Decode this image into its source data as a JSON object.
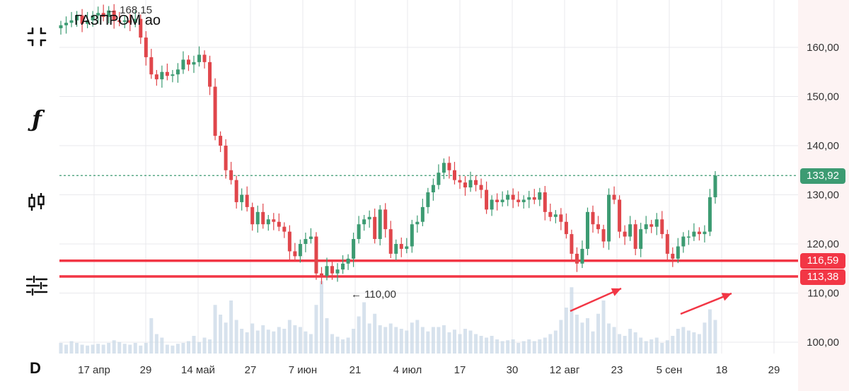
{
  "symbol": "ГАЗПРОМ ао",
  "period": "D",
  "toolbar": [
    {
      "name": "fullscreen-icon"
    },
    {
      "name": "indicators-icon"
    },
    {
      "name": "candles-icon"
    },
    {
      "name": "settings-sliders-icon"
    }
  ],
  "colors": {
    "up": "#3c9b72",
    "down": "#e0464b",
    "volume": "#c9d8e7",
    "grid": "#e9e9ec",
    "level": "#f23645",
    "last_price": "#3c9b72"
  },
  "chart_data": {
    "type": "candlestick",
    "y_ticks": [
      "160,00",
      "150,00",
      "140,00",
      "130,00",
      "120,00",
      "110,00",
      "100,00"
    ],
    "x_ticks": [
      "17 апр",
      "29",
      "14 май",
      "27",
      "7 июн",
      "21",
      "4 июл",
      "17",
      "30",
      "12 авг",
      "23",
      "5 сен",
      "18",
      "29"
    ],
    "ylim": [
      98,
      168
    ],
    "last_price": "133,92",
    "levels": [
      "116,59",
      "113,38"
    ],
    "high_annotation": "← 168,15",
    "low_annotation": "← 110,00",
    "closes": [
      164.5,
      165.0,
      165.5,
      166.5,
      164.8,
      165.5,
      166.5,
      167.0,
      166.2,
      167.5,
      165.5,
      165.2,
      165.5,
      165.0,
      165.8,
      162.0,
      158.0,
      154.5,
      153.5,
      155.0,
      154.2,
      154.5,
      155.5,
      157.5,
      156.5,
      157.0,
      158.5,
      157.0,
      152.0,
      142.0,
      140.0,
      135.0,
      133.0,
      128.5,
      130.0,
      127.5,
      124.0,
      126.5,
      124.0,
      125.0,
      124.5,
      123.5,
      122.5,
      118.5,
      117.5,
      120.0,
      121.0,
      121.5,
      114.0,
      113.5,
      115.5,
      114.0,
      114.8,
      116.0,
      117.0,
      121.0,
      124.0,
      125.0,
      125.5,
      121.0,
      127.0,
      123.0,
      118.0,
      120.0,
      119.0,
      119.5,
      124.0,
      124.5,
      127.5,
      130.5,
      132.0,
      134.5,
      136.5,
      135.0,
      133.0,
      132.5,
      131.5,
      133.0,
      132.0,
      131.0,
      127.0,
      129.0,
      128.5,
      129.0,
      130.0,
      129.0,
      128.5,
      129.0,
      129.5,
      129.0,
      130.5,
      126.5,
      125.5,
      126.0,
      124.5,
      122.0,
      118.0,
      116.0,
      119.0,
      126.5,
      124.0,
      123.0,
      120.5,
      130.0,
      129.0,
      122.5,
      121.5,
      124.0,
      119.0,
      123.0,
      124.0,
      123.5,
      125.0,
      122.0,
      118.0,
      117.0,
      119.5,
      121.5,
      121.5,
      122.5,
      122.0,
      122.5,
      129.5,
      133.92
    ],
    "volumes": [
      12,
      10,
      14,
      12,
      10,
      9,
      10,
      11,
      10,
      12,
      15,
      13,
      11,
      10,
      12,
      9,
      12,
      40,
      22,
      18,
      10,
      9,
      11,
      12,
      14,
      20,
      13,
      18,
      16,
      55,
      44,
      35,
      60,
      38,
      28,
      24,
      34,
      26,
      32,
      27,
      25,
      30,
      28,
      38,
      32,
      30,
      25,
      22,
      55,
      82,
      40,
      22,
      19,
      16,
      18,
      28,
      42,
      58,
      34,
      45,
      32,
      30,
      34,
      30,
      28,
      26,
      35,
      38,
      30,
      25,
      30,
      30,
      32,
      24,
      27,
      22,
      28,
      26,
      22,
      20,
      18,
      20,
      16,
      14,
      15,
      16,
      12,
      14,
      16,
      14,
      16,
      18,
      22,
      26,
      38,
      52,
      75,
      44,
      35,
      40,
      25,
      45,
      60,
      34,
      30,
      22,
      20,
      28,
      24,
      18,
      14,
      16,
      18,
      12,
      15,
      20,
      28,
      30,
      26,
      24,
      22,
      35,
      50,
      38
    ]
  }
}
